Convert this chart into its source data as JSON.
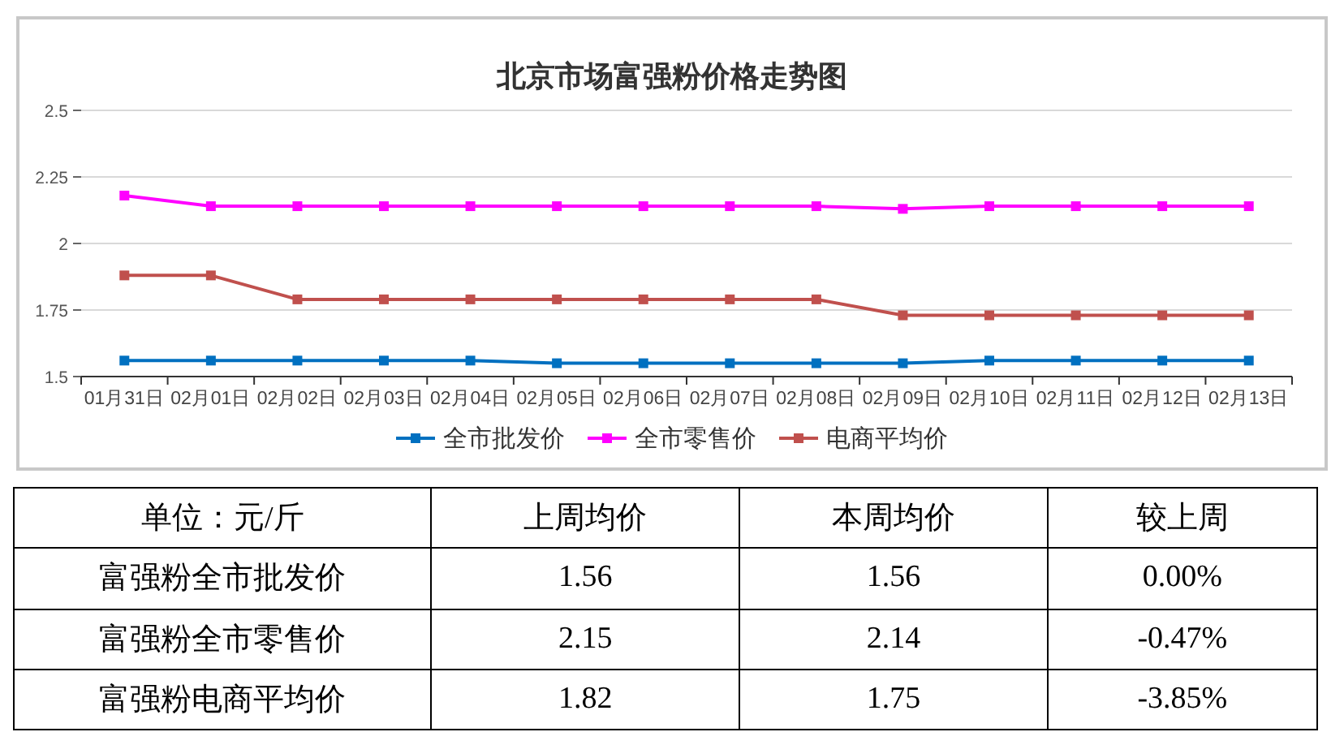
{
  "chart_data": [
    {
      "type": "line",
      "title": "北京市场富强粉价格走势图",
      "categories": [
        "01月31日",
        "02月01日",
        "02月02日",
        "02月03日",
        "02月04日",
        "02月05日",
        "02月06日",
        "02月07日",
        "02月08日",
        "02月09日",
        "02月10日",
        "02月11日",
        "02月12日",
        "02月13日"
      ],
      "ylim": [
        1.5,
        2.5
      ],
      "yticks": [
        1.5,
        1.75,
        2,
        2.25,
        2.5
      ],
      "grid": "y",
      "legend": "bottom",
      "marker": "square",
      "line_style": "solid",
      "series": [
        {
          "name": "全市批发价",
          "color": "#0070c0",
          "values": [
            1.56,
            1.56,
            1.56,
            1.56,
            1.56,
            1.55,
            1.55,
            1.55,
            1.55,
            1.55,
            1.56,
            1.56,
            1.56,
            1.56
          ]
        },
        {
          "name": "全市零售价",
          "color": "#ff00ff",
          "values": [
            2.18,
            2.14,
            2.14,
            2.14,
            2.14,
            2.14,
            2.14,
            2.14,
            2.14,
            2.13,
            2.14,
            2.14,
            2.14,
            2.14
          ]
        },
        {
          "name": "电商平均价",
          "color": "#c0504d",
          "values": [
            1.88,
            1.88,
            1.79,
            1.79,
            1.79,
            1.79,
            1.79,
            1.79,
            1.79,
            1.73,
            1.73,
            1.73,
            1.73,
            1.73
          ]
        }
      ]
    },
    {
      "type": "other",
      "annotations": [
        "单位：元/斤"
      ],
      "categories": [
        "上周均价",
        "本周均价",
        "较上周"
      ],
      "y_categories": [
        "富强粉全市批发价",
        "富强粉全市零售价",
        "富强粉电商平均价"
      ],
      "cell_labels": [
        [
          "1.56",
          "1.56",
          "0.00%"
        ],
        [
          "2.15",
          "2.14",
          "-0.47%"
        ],
        [
          "1.82",
          "1.75",
          "-3.85%"
        ]
      ]
    }
  ]
}
